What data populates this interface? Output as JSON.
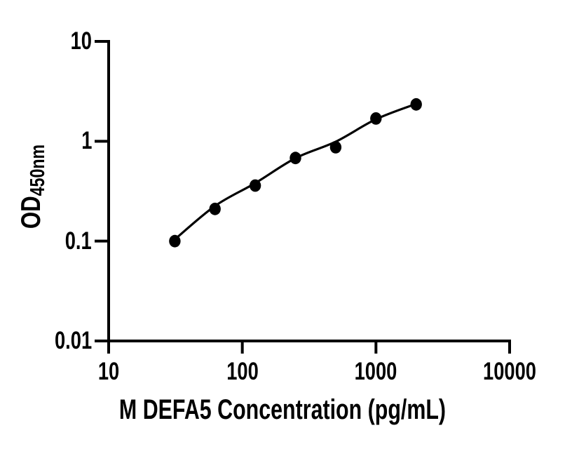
{
  "figure": {
    "background_color": "#ffffff",
    "ink_color": "#000000"
  },
  "chart_data": {
    "type": "scatter",
    "title": "",
    "xlabel": "M DEFA5 Concentration (pg/mL)",
    "ylabel": "OD450nm",
    "ylabel_main": "OD",
    "ylabel_sub": "450nm",
    "x_scale": "log",
    "y_scale": "log",
    "xlim": [
      10,
      10000
    ],
    "ylim": [
      0.01,
      10
    ],
    "x_ticks": [
      10,
      100,
      1000,
      10000
    ],
    "x_tick_labels": [
      "10",
      "100",
      "1000",
      "10000"
    ],
    "y_ticks": [
      10,
      1,
      0.1,
      0.01
    ],
    "y_tick_labels": [
      "10",
      "1",
      "0.1",
      "0.01"
    ],
    "grid": false,
    "legend": "none",
    "marker": "filled-circle",
    "series": [
      {
        "name": "standard-data-points",
        "type": "scatter",
        "color": "#000000",
        "x": [
          31.25,
          62.5,
          125,
          250,
          500,
          1000,
          2000
        ],
        "y": [
          0.1,
          0.21,
          0.36,
          0.68,
          0.87,
          1.69,
          2.34
        ]
      },
      {
        "name": "fitted-curve",
        "type": "line",
        "color": "#000000",
        "x": [
          31.25,
          62.5,
          125,
          250,
          500,
          1000,
          2000
        ],
        "y": [
          0.104,
          0.225,
          0.381,
          0.677,
          0.99,
          1.661,
          2.37
        ]
      }
    ]
  }
}
